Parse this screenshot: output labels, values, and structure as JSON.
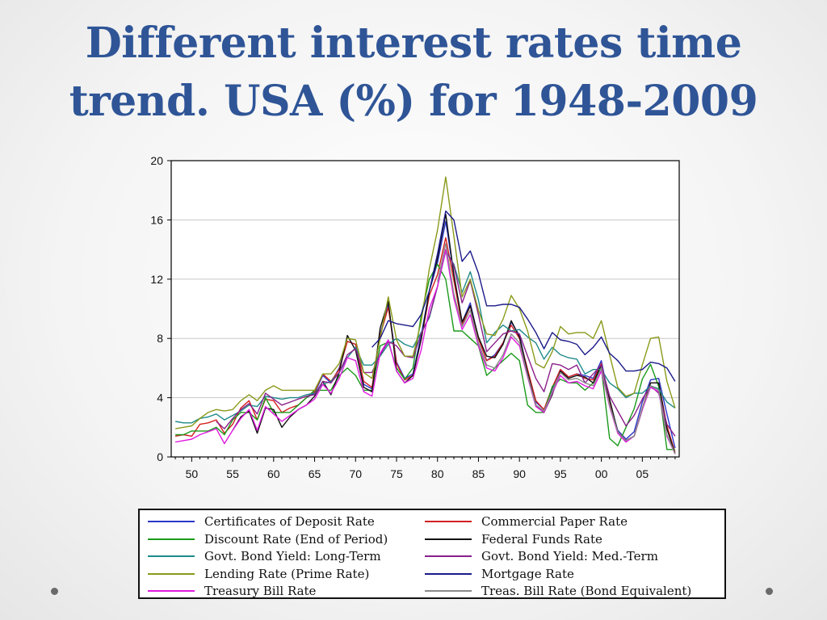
{
  "slide": {
    "title_line1": "Different interest rates time",
    "title_line2": "trend. USA (%) for 1948-2009"
  },
  "nav": {
    "left_dot_icon": "bullet-dot-icon",
    "right_dot_icon": "bullet-dot-icon"
  },
  "chart_data": {
    "type": "line",
    "title": "Different interest rates time trend. USA (%) for 1948-2009",
    "xlabel": "",
    "ylabel": "",
    "xlim": [
      1948,
      2009
    ],
    "ylim": [
      0,
      20
    ],
    "yticks": [
      0,
      4,
      8,
      12,
      16,
      20
    ],
    "xticks": [
      1950,
      1955,
      1960,
      1965,
      1970,
      1975,
      1980,
      1985,
      1990,
      1995,
      2000,
      2005
    ],
    "xtick_labels": [
      "50",
      "55",
      "60",
      "65",
      "70",
      "75",
      "80",
      "85",
      "90",
      "95",
      "00",
      "05"
    ],
    "grid": true,
    "legend_placement": "bottom",
    "series": [
      {
        "name": "Certificates of Deposit Rate",
        "color": "#2b35c8",
        "x": [
          1964,
          1965,
          1966,
          1967,
          1968,
          1969,
          1970,
          1971,
          1972,
          1973,
          1974,
          1975,
          1976,
          1977,
          1978,
          1979,
          1980,
          1981,
          1982,
          1983,
          1984,
          1985,
          1986,
          1987,
          1988,
          1989,
          1990,
          1991,
          1992,
          1993,
          1994,
          1995,
          1996,
          1997,
          1998,
          1999,
          2000,
          2001,
          2002,
          2003,
          2004,
          2005,
          2006,
          2007,
          2008,
          2009
        ],
        "values": [
          4.0,
          4.3,
          5.5,
          5.0,
          6.0,
          7.8,
          7.6,
          4.9,
          4.6,
          8.3,
          10.3,
          6.4,
          5.3,
          5.6,
          8.2,
          11.2,
          13.1,
          15.9,
          12.3,
          9.1,
          10.4,
          8.0,
          6.5,
          6.9,
          7.7,
          9.1,
          8.2,
          5.8,
          3.7,
          3.2,
          4.6,
          5.9,
          5.4,
          5.6,
          5.5,
          5.3,
          6.5,
          3.7,
          1.8,
          1.2,
          1.7,
          3.7,
          5.2,
          5.3,
          2.9,
          0.6
        ]
      },
      {
        "name": "Commercial Paper Rate",
        "color": "#d42020",
        "x": [
          1948,
          1949,
          1950,
          1951,
          1952,
          1953,
          1954,
          1955,
          1956,
          1957,
          1958,
          1959,
          1960,
          1961,
          1962,
          1963,
          1964,
          1965,
          1966,
          1967,
          1968,
          1969,
          1970,
          1971,
          1972,
          1973,
          1974,
          1975,
          1976,
          1977,
          1978,
          1979,
          1980,
          1981,
          1982,
          1983,
          1984,
          1985,
          1986,
          1987,
          1988,
          1989,
          1990,
          1991,
          1992,
          1993,
          1994,
          1995,
          1996,
          1997,
          1998,
          1999,
          2000,
          2001,
          2002,
          2003,
          2004,
          2005,
          2006,
          2007,
          2008,
          2009
        ],
        "values": [
          1.4,
          1.5,
          1.4,
          2.2,
          2.3,
          2.5,
          1.6,
          2.2,
          3.3,
          3.8,
          2.5,
          3.9,
          3.8,
          3.0,
          3.3,
          3.5,
          4.0,
          4.4,
          5.6,
          5.1,
          5.9,
          7.8,
          7.6,
          5.1,
          4.7,
          8.2,
          10.1,
          6.3,
          5.2,
          5.5,
          7.9,
          10.9,
          12.3,
          14.8,
          11.9,
          8.9,
          10.2,
          8.0,
          6.5,
          6.8,
          7.7,
          8.9,
          8.0,
          5.9,
          3.8,
          3.2,
          4.7,
          5.9,
          5.4,
          5.6,
          5.3,
          5.2,
          6.3,
          3.6,
          1.7,
          1.1,
          1.4,
          3.3,
          5.0,
          5.0,
          2.1,
          0.3
        ]
      },
      {
        "name": "Discount Rate (End of Period)",
        "color": "#1a9a1a",
        "x": [
          1948,
          1949,
          1950,
          1951,
          1952,
          1953,
          1954,
          1955,
          1956,
          1957,
          1958,
          1959,
          1960,
          1961,
          1962,
          1963,
          1964,
          1965,
          1966,
          1967,
          1968,
          1969,
          1970,
          1971,
          1972,
          1973,
          1974,
          1975,
          1976,
          1977,
          1978,
          1979,
          1980,
          1981,
          1982,
          1983,
          1984,
          1985,
          1986,
          1987,
          1988,
          1989,
          1990,
          1991,
          1992,
          1993,
          1994,
          1995,
          1996,
          1997,
          1998,
          1999,
          2000,
          2001,
          2002,
          2003,
          2004,
          2005,
          2006,
          2007,
          2008,
          2009
        ],
        "values": [
          1.5,
          1.5,
          1.75,
          1.75,
          1.75,
          2.0,
          1.5,
          2.5,
          3.0,
          3.0,
          2.5,
          4.0,
          3.0,
          3.0,
          3.0,
          3.5,
          4.0,
          4.5,
          4.5,
          4.5,
          5.5,
          6.0,
          5.5,
          4.5,
          4.5,
          7.5,
          7.75,
          6.0,
          5.25,
          6.0,
          9.5,
          12.0,
          13.0,
          12.0,
          8.5,
          8.5,
          8.0,
          7.5,
          5.5,
          6.0,
          6.5,
          7.0,
          6.5,
          3.5,
          3.0,
          3.0,
          4.75,
          5.25,
          5.0,
          5.0,
          4.5,
          5.0,
          6.0,
          1.25,
          0.75,
          2.0,
          3.25,
          5.25,
          6.25,
          4.75,
          0.5,
          0.5
        ]
      },
      {
        "name": "Federal Funds Rate",
        "color": "#111111",
        "x": [
          1955,
          1956,
          1957,
          1958,
          1959,
          1960,
          1961,
          1962,
          1963,
          1964,
          1965,
          1966,
          1967,
          1968,
          1969,
          1970,
          1971,
          1972,
          1973,
          1974,
          1975,
          1976,
          1977,
          1978,
          1979,
          1980,
          1981,
          1982,
          1983,
          1984,
          1985,
          1986,
          1987,
          1988,
          1989,
          1990,
          1991,
          1992,
          1993,
          1994,
          1995,
          1996,
          1997,
          1998,
          1999,
          2000,
          2001,
          2002,
          2003,
          2004,
          2005,
          2006,
          2007,
          2008,
          2009
        ],
        "values": [
          1.8,
          2.7,
          3.1,
          1.6,
          3.3,
          3.2,
          2.0,
          2.7,
          3.2,
          3.5,
          4.1,
          5.1,
          4.2,
          5.7,
          8.2,
          7.2,
          4.7,
          4.4,
          8.7,
          10.5,
          5.8,
          5.0,
          5.5,
          7.9,
          11.2,
          13.4,
          16.4,
          12.3,
          9.1,
          10.2,
          8.1,
          6.8,
          6.7,
          7.6,
          9.2,
          8.1,
          5.7,
          3.5,
          3.0,
          4.2,
          5.8,
          5.3,
          5.5,
          5.4,
          5.0,
          6.2,
          3.9,
          1.7,
          1.1,
          1.4,
          3.2,
          5.0,
          5.0,
          1.9,
          0.2
        ]
      },
      {
        "name": "Govt. Bond Yield: Long-Term",
        "color": "#1f8a8a",
        "x": [
          1948,
          1949,
          1950,
          1951,
          1952,
          1953,
          1954,
          1955,
          1956,
          1957,
          1958,
          1959,
          1960,
          1961,
          1962,
          1963,
          1964,
          1965,
          1966,
          1967,
          1968,
          1969,
          1970,
          1971,
          1972,
          1973,
          1974,
          1975,
          1976,
          1977,
          1978,
          1979,
          1980,
          1981,
          1982,
          1983,
          1984,
          1985,
          1986,
          1987,
          1988,
          1989,
          1990,
          1991,
          1992,
          1993,
          1994,
          1995,
          1996,
          1997,
          1998,
          1999,
          2000,
          2001,
          2002,
          2003,
          2004,
          2005,
          2006,
          2007,
          2008,
          2009
        ],
        "values": [
          2.4,
          2.3,
          2.3,
          2.6,
          2.7,
          2.9,
          2.5,
          2.8,
          3.1,
          3.5,
          3.4,
          4.1,
          4.0,
          3.9,
          4.0,
          4.0,
          4.2,
          4.3,
          4.9,
          5.1,
          5.7,
          6.7,
          7.4,
          6.2,
          6.2,
          6.8,
          7.6,
          8.0,
          7.6,
          7.4,
          8.4,
          9.4,
          11.5,
          13.9,
          13.0,
          11.1,
          12.5,
          10.6,
          7.7,
          8.4,
          8.9,
          8.5,
          8.6,
          8.1,
          7.7,
          6.6,
          7.4,
          6.9,
          6.7,
          6.6,
          5.6,
          5.9,
          5.9,
          5.0,
          4.6,
          4.0,
          4.3,
          4.3,
          4.8,
          4.6,
          3.7,
          3.3
        ]
      },
      {
        "name": "Govt. Bond Yield: Med.-Term",
        "color": "#8a1f8a",
        "x": [
          1953,
          1954,
          1955,
          1956,
          1957,
          1958,
          1959,
          1960,
          1961,
          1962,
          1963,
          1964,
          1965,
          1966,
          1967,
          1968,
          1969,
          1970,
          1971,
          1972,
          1973,
          1974,
          1975,
          1976,
          1977,
          1978,
          1979,
          1980,
          1981,
          1982,
          1983,
          1984,
          1985,
          1986,
          1987,
          1988,
          1989,
          1990,
          1991,
          1992,
          1993,
          1994,
          1995,
          1996,
          1997,
          1998,
          1999,
          2000,
          2001,
          2002,
          2003,
          2004,
          2005,
          2006,
          2007,
          2008,
          2009
        ],
        "values": [
          2.4,
          1.9,
          2.6,
          3.2,
          3.6,
          2.9,
          4.3,
          3.9,
          3.5,
          3.7,
          3.9,
          4.1,
          4.2,
          5.1,
          5.0,
          5.7,
          6.9,
          7.3,
          5.7,
          5.7,
          6.9,
          7.8,
          7.5,
          6.8,
          6.7,
          8.3,
          9.5,
          11.5,
          14.0,
          12.9,
          10.4,
          11.9,
          9.6,
          7.1,
          7.7,
          8.3,
          8.5,
          8.3,
          6.8,
          5.3,
          4.4,
          6.3,
          6.2,
          5.9,
          6.2,
          5.0,
          5.6,
          6.2,
          4.1,
          3.1,
          2.1,
          2.8,
          3.9,
          4.8,
          4.3,
          2.2,
          1.4
        ]
      },
      {
        "name": "Lending Rate (Prime Rate)",
        "color": "#8a9a1a",
        "x": [
          1948,
          1949,
          1950,
          1951,
          1952,
          1953,
          1954,
          1955,
          1956,
          1957,
          1958,
          1959,
          1960,
          1961,
          1962,
          1963,
          1964,
          1965,
          1966,
          1967,
          1968,
          1969,
          1970,
          1971,
          1972,
          1973,
          1974,
          1975,
          1976,
          1977,
          1978,
          1979,
          1980,
          1981,
          1982,
          1983,
          1984,
          1985,
          1986,
          1987,
          1988,
          1989,
          1990,
          1991,
          1992,
          1993,
          1994,
          1995,
          1996,
          1997,
          1998,
          1999,
          2000,
          2001,
          2002,
          2003,
          2004,
          2005,
          2006,
          2007,
          2008,
          2009
        ],
        "values": [
          1.9,
          2.0,
          2.1,
          2.6,
          3.0,
          3.2,
          3.1,
          3.2,
          3.8,
          4.2,
          3.8,
          4.5,
          4.8,
          4.5,
          4.5,
          4.5,
          4.5,
          4.5,
          5.6,
          5.6,
          6.3,
          8.0,
          7.9,
          5.7,
          5.3,
          8.0,
          10.8,
          7.9,
          6.8,
          6.8,
          9.1,
          12.7,
          15.3,
          18.9,
          14.9,
          10.8,
          12.0,
          9.9,
          8.3,
          8.2,
          9.3,
          10.9,
          10.0,
          8.5,
          6.3,
          6.0,
          7.1,
          8.8,
          8.3,
          8.4,
          8.4,
          8.0,
          9.2,
          6.9,
          4.7,
          4.1,
          4.3,
          6.2,
          8.0,
          8.1,
          5.1,
          3.3
        ]
      },
      {
        "name": "Mortgage Rate",
        "color": "#1a1a8a",
        "x": [
          1972,
          1973,
          1974,
          1975,
          1976,
          1977,
          1978,
          1979,
          1980,
          1981,
          1982,
          1983,
          1984,
          1985,
          1986,
          1987,
          1988,
          1989,
          1990,
          1991,
          1992,
          1993,
          1994,
          1995,
          1996,
          1997,
          1998,
          1999,
          2000,
          2001,
          2002,
          2003,
          2004,
          2005,
          2006,
          2007,
          2008,
          2009
        ],
        "values": [
          7.4,
          8.0,
          9.2,
          9.0,
          8.9,
          8.8,
          9.6,
          11.2,
          13.7,
          16.6,
          16.0,
          13.2,
          13.9,
          12.4,
          10.2,
          10.2,
          10.3,
          10.3,
          10.1,
          9.3,
          8.4,
          7.3,
          8.4,
          7.9,
          7.8,
          7.6,
          6.9,
          7.4,
          8.1,
          7.0,
          6.5,
          5.8,
          5.8,
          5.9,
          6.4,
          6.3,
          6.0,
          5.1
        ]
      },
      {
        "name": "Treasury Bill Rate",
        "color": "#e01ae0",
        "x": [
          1948,
          1949,
          1950,
          1951,
          1952,
          1953,
          1954,
          1955,
          1956,
          1957,
          1958,
          1959,
          1960,
          1961,
          1962,
          1963,
          1964,
          1965,
          1966,
          1967,
          1968,
          1969,
          1970,
          1971,
          1972,
          1973,
          1974,
          1975,
          1976,
          1977,
          1978,
          1979,
          1980,
          1981,
          1982,
          1983,
          1984,
          1985,
          1986,
          1987,
          1988,
          1989,
          1990,
          1991,
          1992,
          1993,
          1994,
          1995,
          1996,
          1997,
          1998,
          1999,
          2000,
          2001,
          2002,
          2003,
          2004,
          2005,
          2006,
          2007,
          2008,
          2009
        ],
        "values": [
          1.0,
          1.1,
          1.2,
          1.5,
          1.7,
          1.9,
          0.9,
          1.8,
          2.6,
          3.2,
          1.8,
          3.4,
          2.9,
          2.4,
          2.8,
          3.2,
          3.5,
          3.9,
          4.9,
          4.3,
          5.3,
          6.7,
          6.5,
          4.4,
          4.1,
          7.0,
          7.9,
          5.8,
          5.0,
          5.3,
          7.2,
          10.0,
          11.5,
          14.0,
          10.7,
          8.6,
          9.6,
          7.5,
          6.0,
          5.8,
          6.7,
          8.1,
          7.5,
          5.4,
          3.4,
          3.0,
          4.3,
          5.5,
          5.0,
          5.1,
          4.8,
          4.6,
          5.8,
          3.4,
          1.6,
          1.0,
          1.4,
          3.2,
          4.7,
          4.4,
          1.4,
          0.2
        ]
      },
      {
        "name": "Treas. Bill Rate (Bond Equivalent)",
        "color": "#8a8a8a",
        "x": [
          1980,
          1981,
          1982,
          1983,
          1984,
          1985,
          1986,
          1987,
          1988,
          1989,
          1990,
          1991,
          1992,
          1993,
          1994,
          1995,
          1996,
          1997,
          1998,
          1999,
          2000,
          2001,
          2002,
          2003,
          2004,
          2005,
          2006,
          2007,
          2008,
          2009
        ],
        "values": [
          11.8,
          14.4,
          11.0,
          8.8,
          9.9,
          7.7,
          6.2,
          6.0,
          6.9,
          8.3,
          7.7,
          5.5,
          3.5,
          3.1,
          4.4,
          5.7,
          5.2,
          5.3,
          5.0,
          4.8,
          6.0,
          3.5,
          1.7,
          1.1,
          1.4,
          3.3,
          4.8,
          4.5,
          1.5,
          0.2
        ]
      }
    ]
  }
}
